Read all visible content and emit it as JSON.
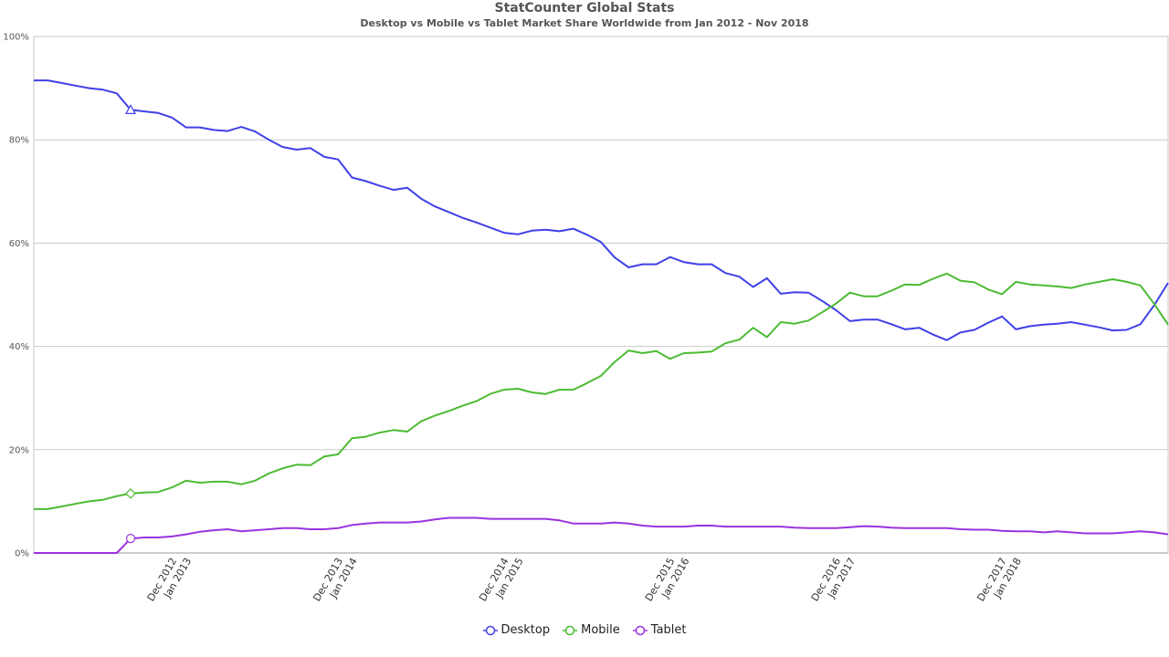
{
  "chart_data": {
    "type": "line",
    "title": "StatCounter Global Stats",
    "subtitle": "Desktop vs Mobile vs Tablet Market Share Worldwide from Jan 2012 - Nov 2018",
    "xlabel": "",
    "ylabel": "",
    "ylim": [
      0,
      100
    ],
    "y_ticks": [
      "0%",
      "20%",
      "40%",
      "60%",
      "80%",
      "100%"
    ],
    "grid": true,
    "legend_position": "bottom-center",
    "x_tick_labels": [
      {
        "month_index": 11,
        "lines": [
          "Dec 2012",
          "Jan 2013"
        ]
      },
      {
        "month_index": 23,
        "lines": [
          "Dec 2013",
          "Jan 2014"
        ]
      },
      {
        "month_index": 35,
        "lines": [
          "Dec 2014",
          "Jan 2015"
        ]
      },
      {
        "month_index": 47,
        "lines": [
          "Dec 2015",
          "Jan 2016"
        ]
      },
      {
        "month_index": 59,
        "lines": [
          "Dec 2016",
          "Jan 2017"
        ]
      },
      {
        "month_index": 71,
        "lines": [
          "Dec 2017",
          "Jan 2018"
        ]
      }
    ],
    "x_start": "Jan 2012",
    "x_end": "Nov 2018",
    "series": [
      {
        "name": "Desktop",
        "color": "#4040e8",
        "marker": "triangle",
        "values": [
          91.5,
          91.5,
          91.0,
          90.5,
          90.0,
          89.7,
          89.0,
          85.8,
          85.5,
          85.2,
          84.3,
          82.4,
          82.4,
          81.9,
          81.7,
          82.5,
          81.6,
          80.0,
          78.6,
          78.1,
          78.4,
          76.7,
          76.2,
          72.7,
          72.0,
          71.1,
          70.3,
          70.7,
          68.6,
          67.1,
          66.0,
          64.9,
          64.0,
          63.0,
          62.0,
          61.7,
          62.4,
          62.6,
          62.3,
          62.8,
          61.6,
          60.2,
          57.2,
          55.3,
          55.9,
          55.9,
          57.3,
          56.3,
          55.9,
          55.9,
          54.2,
          53.5,
          51.5,
          53.2,
          50.2,
          50.5,
          50.4,
          48.8,
          47.0,
          44.9,
          45.2,
          45.2,
          44.3,
          43.3,
          43.6,
          42.3,
          41.2,
          42.7,
          43.2,
          44.6,
          45.8,
          43.3,
          43.9,
          44.2,
          44.4,
          44.7,
          44.2,
          43.7,
          43.1,
          43.2,
          44.3,
          48.0,
          52.3
        ]
      },
      {
        "name": "Mobile",
        "color": "#4cba32",
        "marker": "diamond",
        "values": [
          8.5,
          8.5,
          9.0,
          9.5,
          10.0,
          10.3,
          11.0,
          11.5,
          11.7,
          11.8,
          12.7,
          14.0,
          13.6,
          13.8,
          13.8,
          13.3,
          14.0,
          15.4,
          16.4,
          17.1,
          17.0,
          18.7,
          19.1,
          22.2,
          22.5,
          23.3,
          23.8,
          23.5,
          25.5,
          26.6,
          27.5,
          28.5,
          29.4,
          30.8,
          31.6,
          31.8,
          31.1,
          30.8,
          31.6,
          31.6,
          32.9,
          34.3,
          37.0,
          39.2,
          38.7,
          39.1,
          37.6,
          38.7,
          38.8,
          39.0,
          40.6,
          41.3,
          43.6,
          41.8,
          44.7,
          44.4,
          45.0,
          46.6,
          48.3,
          50.4,
          49.7,
          49.7,
          50.8,
          52.0,
          51.9,
          53.1,
          54.1,
          52.7,
          52.4,
          51.0,
          50.1,
          52.5,
          52.0,
          51.8,
          51.6,
          51.3,
          52.0,
          52.5,
          53.0,
          52.5,
          51.8,
          48.2,
          44.2
        ]
      },
      {
        "name": "Tablet",
        "color": "#9932e0",
        "marker": "circle",
        "values": [
          0,
          0,
          0,
          0,
          0,
          0,
          0,
          2.8,
          3.0,
          3.0,
          3.2,
          3.6,
          4.1,
          4.4,
          4.6,
          4.2,
          4.4,
          4.6,
          4.8,
          4.8,
          4.6,
          4.6,
          4.8,
          5.4,
          5.7,
          5.9,
          5.9,
          5.9,
          6.1,
          6.5,
          6.8,
          6.8,
          6.8,
          6.6,
          6.6,
          6.6,
          6.6,
          6.6,
          6.3,
          5.7,
          5.7,
          5.7,
          5.9,
          5.7,
          5.3,
          5.1,
          5.1,
          5.1,
          5.3,
          5.3,
          5.1,
          5.1,
          5.1,
          5.1,
          5.1,
          4.9,
          4.8,
          4.8,
          4.8,
          5.0,
          5.2,
          5.1,
          4.9,
          4.8,
          4.8,
          4.8,
          4.8,
          4.6,
          4.5,
          4.5,
          4.3,
          4.2,
          4.2,
          4.0,
          4.2,
          4.0,
          3.8,
          3.8,
          3.8,
          4.0,
          4.2,
          4.0,
          3.6
        ]
      }
    ],
    "highlight_month_index": 7
  }
}
